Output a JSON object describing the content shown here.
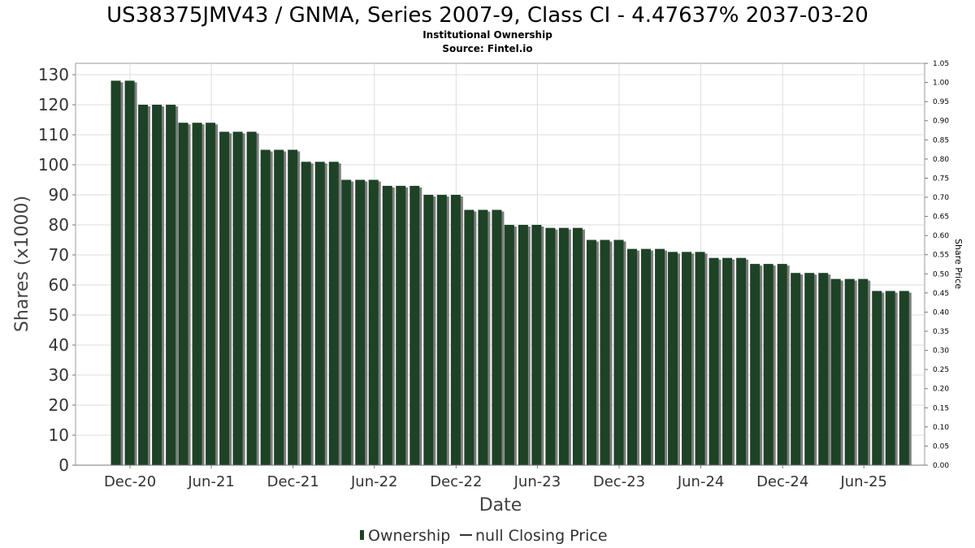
{
  "chart_data": {
    "type": "bar",
    "title": "US38375JMV43 / GNMA, Series 2007-9, Class CI - 4.47637% 2037-03-20",
    "subtitle_lines": [
      "Institutional Ownership",
      "Source: Fintel.io"
    ],
    "xlabel": "Date",
    "ylabel": "Shares (x1000)",
    "y2label": "Share Price",
    "ylim": [
      0,
      130
    ],
    "y_ticks": [
      0,
      10,
      20,
      30,
      40,
      50,
      60,
      70,
      80,
      90,
      100,
      110,
      120,
      130
    ],
    "y2lim": [
      0,
      1.05
    ],
    "y2_ticks": [
      "0.00",
      "0.05",
      "0.10",
      "0.15",
      "0.20",
      "0.25",
      "0.30",
      "0.35",
      "0.40",
      "0.45",
      "0.50",
      "0.55",
      "0.60",
      "0.65",
      "0.70",
      "0.75",
      "0.80",
      "0.85",
      "0.90",
      "0.95",
      "1.00",
      "1.05"
    ],
    "x_range": [
      "2020-08-01",
      "2025-10-15"
    ],
    "x_ticks": [
      {
        "label": "Dec-20",
        "date": "2020-12-01"
      },
      {
        "label": "Jun-21",
        "date": "2021-06-01"
      },
      {
        "label": "Dec-21",
        "date": "2021-12-01"
      },
      {
        "label": "Jun-22",
        "date": "2022-06-01"
      },
      {
        "label": "Dec-22",
        "date": "2022-12-01"
      },
      {
        "label": "Jun-23",
        "date": "2023-06-01"
      },
      {
        "label": "Dec-23",
        "date": "2023-12-01"
      },
      {
        "label": "Jun-24",
        "date": "2024-06-01"
      },
      {
        "label": "Dec-24",
        "date": "2024-12-01"
      },
      {
        "label": "Jun-25",
        "date": "2025-06-01"
      }
    ],
    "grid": true,
    "legend_placement": "bottom-center",
    "legend": [
      {
        "label": "Ownership",
        "type": "bar"
      },
      {
        "label": "null Closing Price",
        "type": "line"
      }
    ],
    "colors": {
      "bar": "#1e4226",
      "bar_shadow": "#7d7d7d",
      "grid": "#dddddd",
      "axis": "#999999"
    },
    "series": [
      {
        "name": "Ownership",
        "x": [
          "2020-10-01",
          "2020-11-01",
          "2020-12-01",
          "2021-01-01",
          "2021-02-01",
          "2021-03-01",
          "2021-04-01",
          "2021-05-01",
          "2021-06-01",
          "2021-07-01",
          "2021-08-01",
          "2021-09-01",
          "2021-10-01",
          "2021-11-01",
          "2021-12-01",
          "2022-01-01",
          "2022-02-01",
          "2022-03-01",
          "2022-04-01",
          "2022-05-01",
          "2022-06-01",
          "2022-07-01",
          "2022-08-01",
          "2022-09-01",
          "2022-10-01",
          "2022-11-01",
          "2022-12-01",
          "2023-01-01",
          "2023-02-01",
          "2023-03-01",
          "2023-04-01",
          "2023-05-01",
          "2023-06-01",
          "2023-07-01",
          "2023-08-01",
          "2023-09-01",
          "2023-10-01",
          "2023-11-01",
          "2023-12-01",
          "2024-01-01",
          "2024-02-01",
          "2024-03-01",
          "2024-04-01",
          "2024-05-01",
          "2024-06-01",
          "2024-07-01",
          "2024-08-01",
          "2024-09-01",
          "2024-10-01",
          "2024-11-01",
          "2024-12-01",
          "2025-01-01",
          "2025-02-01",
          "2025-03-01",
          "2025-04-01",
          "2025-05-01",
          "2025-06-01",
          "2025-07-01",
          "2025-08-01"
        ],
        "values": [
          128,
          128,
          120,
          120,
          120,
          114,
          114,
          114,
          111,
          111,
          111,
          105,
          105,
          105,
          101,
          101,
          101,
          95,
          95,
          95,
          93,
          93,
          93,
          90,
          90,
          90,
          85,
          85,
          85,
          80,
          80,
          80,
          79,
          79,
          79,
          75,
          75,
          75,
          72,
          72,
          72,
          71,
          71,
          71,
          69,
          69,
          69,
          67,
          67,
          67,
          64,
          64,
          64,
          62,
          62,
          62,
          58,
          58,
          58
        ]
      }
    ]
  }
}
